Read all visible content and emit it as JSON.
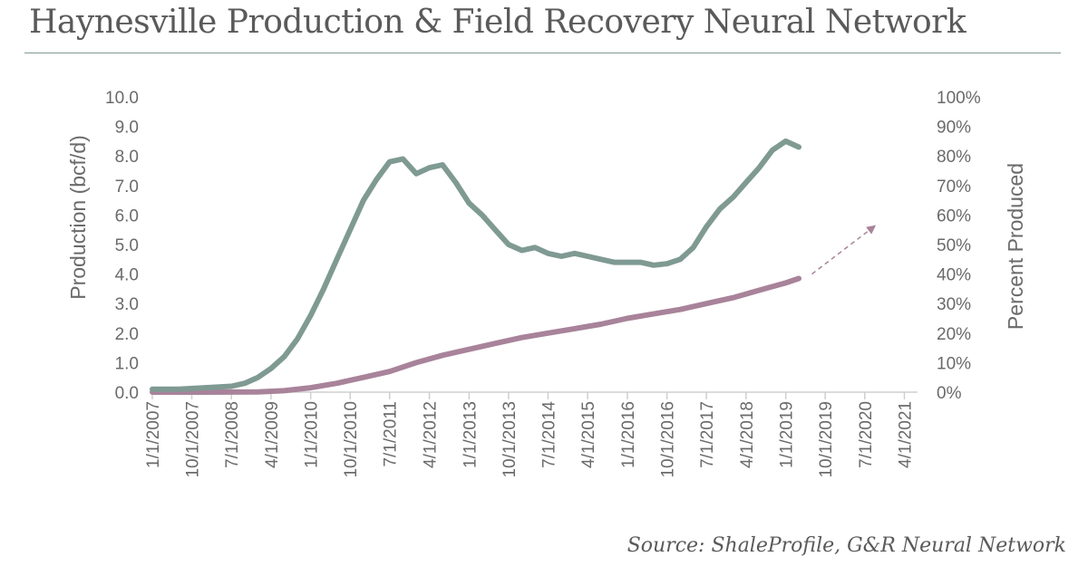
{
  "title": "Haynesville Production & Field Recovery Neural Network",
  "source": "Source: ShaleProfile, G&R Neural Network",
  "colors": {
    "production": "#7f9a92",
    "percent_produced": "#a8839a",
    "projection": "#a8839a",
    "text": "#6a6a6a",
    "axis": "#cfcfcf",
    "title_rule": "#7f9a92"
  },
  "chart_data": {
    "type": "line",
    "title": "Haynesville Production & Field Recovery Neural Network",
    "xlabel": "",
    "ylabel": "Production (bcf/d)",
    "y2label": "Percent Produced",
    "x_tick_labels": [
      "1/1/2007",
      "10/1/2007",
      "7/1/2008",
      "4/1/2009",
      "1/1/2010",
      "10/1/2010",
      "7/1/2011",
      "4/1/2012",
      "1/1/2013",
      "10/1/2013",
      "7/1/2014",
      "4/1/2015",
      "1/1/2016",
      "10/1/2016",
      "7/1/2017",
      "4/1/2018",
      "1/1/2019",
      "10/1/2019",
      "7/1/2020",
      "4/1/2021"
    ],
    "xlim": [
      "2007-01-01",
      "2021-07-01"
    ],
    "ylim": [
      0,
      10
    ],
    "y_tick_labels": [
      "0.0",
      "1.0",
      "2.0",
      "3.0",
      "4.0",
      "5.0",
      "6.0",
      "7.0",
      "8.0",
      "9.0",
      "10.0"
    ],
    "y2lim": [
      0,
      100
    ],
    "y2_tick_labels": [
      "0%",
      "10%",
      "20%",
      "30%",
      "40%",
      "50%",
      "60%",
      "70%",
      "80%",
      "90%",
      "100%"
    ],
    "grid": false,
    "legend": "none",
    "series": [
      {
        "axis": "left",
        "x": [
          "2007-01-01",
          "2007-07-01",
          "2008-01-01",
          "2008-07-01",
          "2008-10-01",
          "2009-01-01",
          "2009-04-01",
          "2009-07-01",
          "2009-10-01",
          "2010-01-01",
          "2010-04-01",
          "2010-07-01",
          "2010-10-01",
          "2011-01-01",
          "2011-04-01",
          "2011-07-01",
          "2011-10-01",
          "2012-01-01",
          "2012-04-01",
          "2012-07-01",
          "2012-10-01",
          "2013-01-01",
          "2013-04-01",
          "2013-07-01",
          "2013-10-01",
          "2014-01-01",
          "2014-04-01",
          "2014-07-01",
          "2014-10-01",
          "2015-01-01",
          "2015-04-01",
          "2015-07-01",
          "2015-10-01",
          "2016-01-01",
          "2016-04-01",
          "2016-07-01",
          "2016-10-01",
          "2017-01-01",
          "2017-04-01",
          "2017-07-01",
          "2017-10-01",
          "2018-01-01",
          "2018-04-01",
          "2018-07-01",
          "2018-10-01",
          "2019-01-01",
          "2019-04-01"
        ],
        "values": [
          0.1,
          0.1,
          0.15,
          0.2,
          0.3,
          0.5,
          0.8,
          1.2,
          1.8,
          2.6,
          3.5,
          4.5,
          5.5,
          6.5,
          7.2,
          7.8,
          7.9,
          7.4,
          7.6,
          7.7,
          7.1,
          6.4,
          6.0,
          5.5,
          5.0,
          4.8,
          4.9,
          4.7,
          4.6,
          4.7,
          4.6,
          4.5,
          4.4,
          4.4,
          4.4,
          4.3,
          4.35,
          4.5,
          4.9,
          5.6,
          6.2,
          6.6,
          7.1,
          7.6,
          8.2,
          8.5,
          8.3
        ]
      },
      {
        "axis": "right",
        "x": [
          "2007-01-01",
          "2008-01-01",
          "2009-01-01",
          "2009-07-01",
          "2010-01-01",
          "2010-07-01",
          "2011-01-01",
          "2011-07-01",
          "2012-01-01",
          "2012-07-01",
          "2013-01-01",
          "2013-07-01",
          "2014-01-01",
          "2014-07-01",
          "2015-01-01",
          "2015-07-01",
          "2016-01-01",
          "2016-07-01",
          "2017-01-01",
          "2017-07-01",
          "2018-01-01",
          "2018-07-01",
          "2019-01-01",
          "2019-04-01"
        ],
        "values": [
          0,
          0,
          0.1,
          0.5,
          1.5,
          3,
          5,
          7,
          10,
          12.5,
          14.5,
          16.5,
          18.5,
          20,
          21.5,
          23,
          25,
          26.5,
          28,
          30,
          32,
          34.5,
          37,
          38.5
        ]
      }
    ],
    "projection_arrow": {
      "axis": "right",
      "from": {
        "x": "2019-07-01",
        "y": 40
      },
      "to": {
        "x": "2020-09-01",
        "y": 56
      }
    }
  }
}
